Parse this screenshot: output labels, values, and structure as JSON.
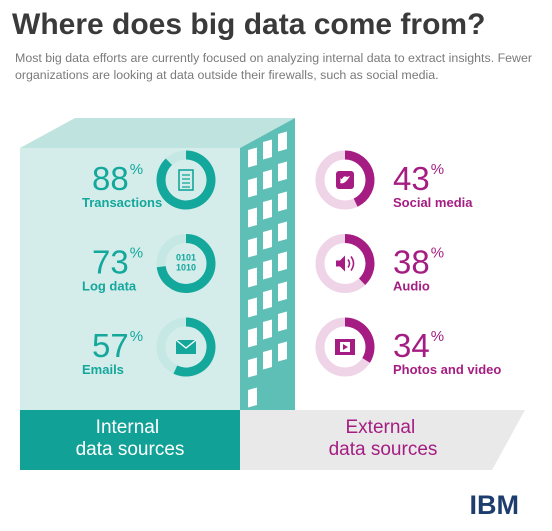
{
  "title": "Where does big data come from?",
  "subtitle": "Most big data efforts are currently focused on analyzing internal data to extract insights. Fewer organizations are looking at data outside their firewalls, such as social media.",
  "chart_data": [
    {
      "type": "donut",
      "label": "Internal data sources",
      "color": "#14a79c",
      "track_color": "#c6e8e4",
      "unit": "%",
      "categories": [
        "Transactions",
        "Log data",
        "Emails"
      ],
      "values": [
        88,
        73,
        57
      ]
    },
    {
      "type": "donut",
      "label": "External data sources",
      "color": "#a51d82",
      "track_color": "#efd4e7",
      "unit": "%",
      "categories": [
        "Social media",
        "Audio",
        "Photos and video"
      ],
      "values": [
        43,
        38,
        34
      ]
    }
  ],
  "log_icon_text": [
    "0101",
    "1010"
  ],
  "logo": "IBM"
}
